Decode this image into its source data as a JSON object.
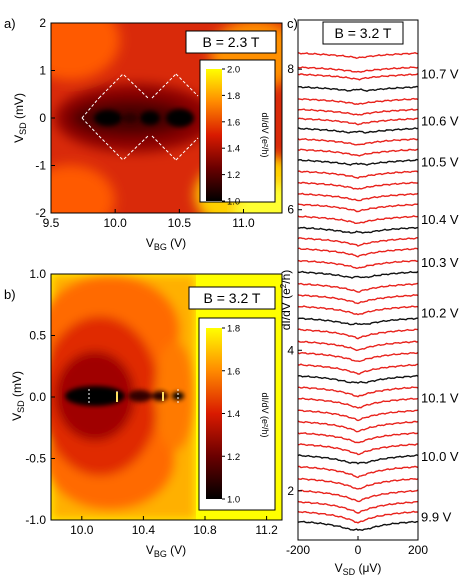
{
  "colors": {
    "red": "#e8221c",
    "black": "#111111"
  },
  "chart_data": [
    {
      "type": "heatmap",
      "panel": "a)",
      "field_label": "B = 2.3 T",
      "xlabel": {
        "main": "V",
        "sub": "BG",
        "unit": " (V)"
      },
      "ylabel": {
        "main": "V",
        "sub": "SD",
        "unit": " (mV)"
      },
      "xlim": [
        9.5,
        11.3
      ],
      "ylim": [
        -2,
        2
      ],
      "xticks": [
        "9.5",
        "10.0",
        "10.5",
        "11.0"
      ],
      "yticks": [
        "2",
        "1",
        "0",
        "-1",
        "-2"
      ],
      "colorbar": {
        "label": "dI/dV (e²/h)",
        "range": [
          1.0,
          2.0
        ],
        "ticks": [
          "2.0",
          "1.8",
          "1.6",
          "1.4",
          "1.2",
          "1.0"
        ]
      }
    },
    {
      "type": "heatmap",
      "panel": "b)",
      "field_label": "B = 3.2 T",
      "xlabel": {
        "main": "V",
        "sub": "BG",
        "unit": " (V)"
      },
      "ylabel": {
        "main": "V",
        "sub": "SD",
        "unit": " (mV)"
      },
      "xlim": [
        9.8,
        11.3
      ],
      "ylim": [
        -1.0,
        1.0
      ],
      "xticks": [
        "10.0",
        "10.4",
        "10.8",
        "11.2"
      ],
      "yticks": [
        "1.0",
        "0.5",
        "0.0",
        "-0.5",
        "-1.0"
      ],
      "colorbar": {
        "label": "dI/dV (e²/h)",
        "range": [
          1.0,
          1.8
        ],
        "ticks": [
          "1.8",
          "1.6",
          "1.4",
          "1.2",
          "1.0"
        ]
      }
    },
    {
      "type": "line",
      "panel": "c)",
      "field_label": "B = 3.2 T",
      "xlabel": {
        "main": "V",
        "sub": "SD",
        "unit": " (μV)"
      },
      "ylabel": {
        "main": "dI/dV (e",
        "sup": "2",
        "unit": "/h)"
      },
      "xlim": [
        -200,
        200
      ],
      "ylim": [
        1.3,
        8.7
      ],
      "xticks": [
        "-200",
        "0",
        "200"
      ],
      "yticks": [
        "2",
        "4",
        "6",
        "8"
      ],
      "gate_labels": [
        "10.7 V",
        "10.6 V",
        "10.5 V",
        "10.4 V",
        "10.3 V",
        "10.2 V",
        "10.1 V",
        "10.0 V",
        "9.9 V"
      ],
      "gate_label_y": [
        7.93,
        7.26,
        6.68,
        5.86,
        5.25,
        4.53,
        3.32,
        2.49,
        1.63
      ],
      "trace_offsets": [
        8.2,
        8.0,
        7.9,
        7.72,
        7.55,
        7.4,
        7.27,
        7.13,
        6.98,
        6.83,
        6.68,
        6.52,
        6.36,
        6.2,
        6.05,
        5.88,
        5.72,
        5.57,
        5.42,
        5.25,
        5.09,
        4.92,
        4.76,
        4.6,
        4.43,
        4.27,
        4.1,
        3.94,
        3.77,
        3.61,
        3.45,
        3.29,
        3.12,
        2.96,
        2.8,
        2.64,
        2.48,
        2.32,
        2.15,
        1.98,
        1.82,
        1.68,
        1.54
      ],
      "trace_colors": [
        "red",
        "red",
        "red",
        "black",
        "red",
        "red",
        "red",
        "black",
        "red",
        "red",
        "black",
        "red",
        "red",
        "red",
        "red",
        "red",
        "black",
        "red",
        "red",
        "red",
        "black",
        "red",
        "red",
        "red",
        "black",
        "red",
        "red",
        "red",
        "red",
        "black",
        "red",
        "red",
        "red",
        "red",
        "red",
        "red",
        "black",
        "red",
        "red",
        "red",
        "red",
        "red",
        "black"
      ]
    }
  ]
}
